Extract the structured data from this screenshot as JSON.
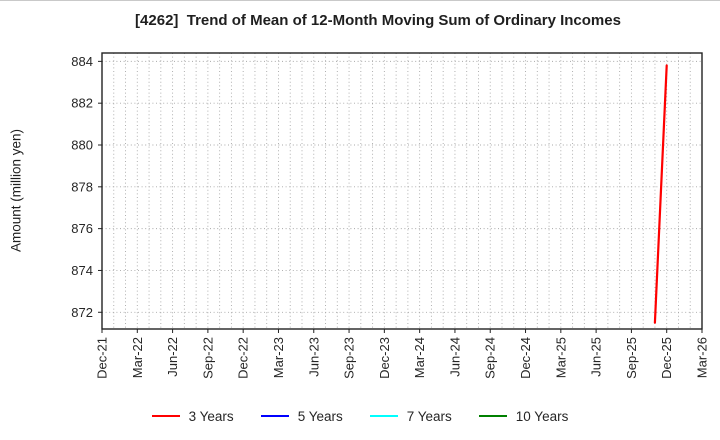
{
  "chart_data": {
    "type": "line",
    "title": "[4262]  Trend of Mean of 12-Month Moving Sum of Ordinary Incomes",
    "xlabel": "",
    "ylabel": "Amount (million yen)",
    "y_ticks": [
      872,
      874,
      876,
      878,
      880,
      882,
      884
    ],
    "ylim": [
      871.2,
      884.4
    ],
    "months_total": 51,
    "x_ticks": [
      {
        "label": "Dec-21",
        "month": 0
      },
      {
        "label": "Mar-22",
        "month": 3
      },
      {
        "label": "Jun-22",
        "month": 6
      },
      {
        "label": "Sep-22",
        "month": 9
      },
      {
        "label": "Dec-22",
        "month": 12
      },
      {
        "label": "Mar-23",
        "month": 15
      },
      {
        "label": "Jun-23",
        "month": 18
      },
      {
        "label": "Sep-23",
        "month": 21
      },
      {
        "label": "Dec-23",
        "month": 24
      },
      {
        "label": "Mar-24",
        "month": 27
      },
      {
        "label": "Jun-24",
        "month": 30
      },
      {
        "label": "Sep-24",
        "month": 33
      },
      {
        "label": "Dec-24",
        "month": 36
      },
      {
        "label": "Mar-25",
        "month": 39
      },
      {
        "label": "Jun-25",
        "month": 42
      },
      {
        "label": "Sep-25",
        "month": 45
      },
      {
        "label": "Dec-25",
        "month": 48
      },
      {
        "label": "Mar-26",
        "month": 51
      }
    ],
    "grid": "dotted; vertical line every month, horizontal line every 2 units",
    "legend_position": "bottom-center",
    "series": [
      {
        "name": "3 Years",
        "color": "#ff0000",
        "points": [
          {
            "x": "Nov-25",
            "month": 47,
            "y": 871.5
          },
          {
            "x": "Dec-25",
            "month": 48,
            "y": 883.8
          }
        ]
      },
      {
        "name": "5 Years",
        "color": "#0000ff",
        "points": []
      },
      {
        "name": "7 Years",
        "color": "#00ffff",
        "points": []
      },
      {
        "name": "10 Years",
        "color": "#008000",
        "points": []
      }
    ],
    "colors": {
      "background": "#ffffff",
      "frame": "#222222",
      "gridline": "#a8a8a8",
      "text": "#1f1f1f"
    }
  }
}
